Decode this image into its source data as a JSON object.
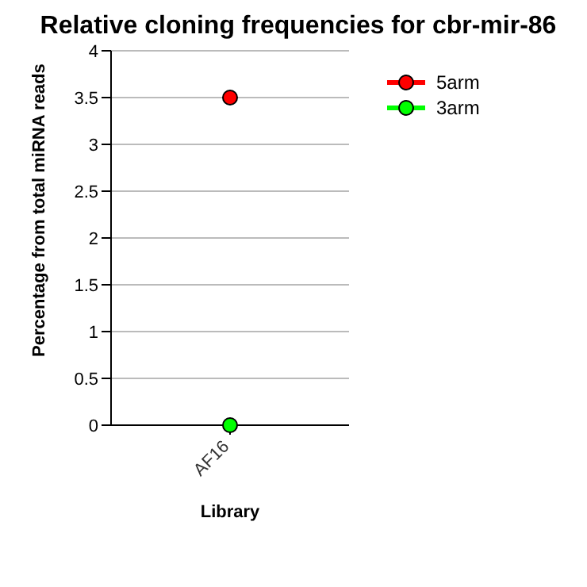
{
  "chart_data": {
    "type": "line",
    "title": "Relative cloning frequencies for cbr-mir-86",
    "xlabel": "Library",
    "ylabel": "Percentage from total miRNA reads",
    "categories": [
      "AF16"
    ],
    "series": [
      {
        "name": "5arm",
        "color": "#ff0000",
        "values": [
          3.5
        ]
      },
      {
        "name": "3arm",
        "color": "#00ff00",
        "values": [
          0
        ]
      }
    ],
    "ylim": [
      0,
      4
    ],
    "yticks": [
      0,
      0.5,
      1,
      1.5,
      2,
      2.5,
      3,
      3.5,
      4
    ],
    "grid": "y",
    "legend": "top right",
    "marker": "circle",
    "line_style": "solid"
  }
}
